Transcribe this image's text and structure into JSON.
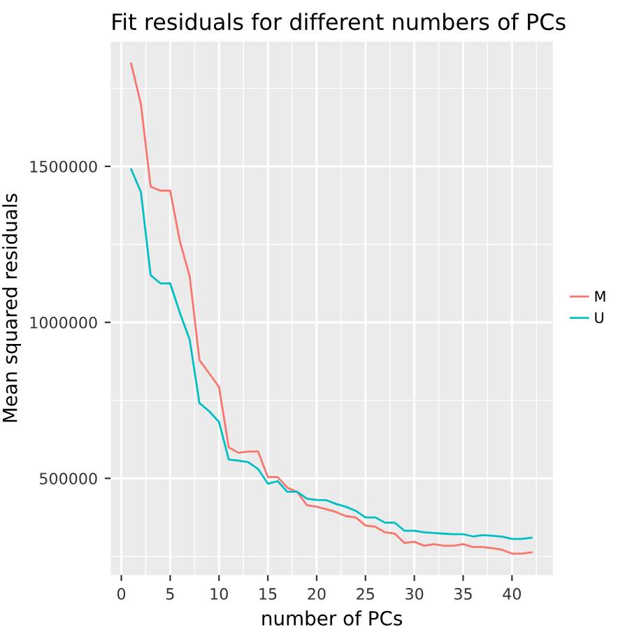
{
  "chart_data": {
    "type": "line",
    "title": "Fit residuals for different numbers of PCs",
    "xlabel": "number of PCs",
    "ylabel": "Mean squared residuals",
    "x": [
      1,
      2,
      3,
      4,
      5,
      6,
      7,
      8,
      9,
      10,
      11,
      12,
      13,
      14,
      15,
      16,
      17,
      18,
      19,
      20,
      21,
      22,
      23,
      24,
      25,
      26,
      27,
      28,
      29,
      30,
      31,
      32,
      33,
      34,
      35,
      36,
      37,
      38,
      39,
      40,
      41,
      42
    ],
    "series": [
      {
        "name": "M",
        "color": "#f8766d",
        "values": [
          1830000,
          1700000,
          1435000,
          1422000,
          1422000,
          1259000,
          1147000,
          879000,
          836000,
          793000,
          599000,
          582000,
          586000,
          586000,
          504000,
          504000,
          470000,
          457000,
          414000,
          409000,
          401000,
          392000,
          379000,
          375000,
          349000,
          345000,
          327000,
          323000,
          293000,
          297000,
          284000,
          289000,
          284000,
          284000,
          289000,
          280000,
          280000,
          276000,
          271000,
          259000,
          259000,
          263000
        ]
      },
      {
        "name": "U",
        "color": "#00bfc4",
        "values": [
          1491000,
          1418000,
          1151000,
          1125000,
          1125000,
          1030000,
          944000,
          741000,
          715000,
          681000,
          560000,
          557000,
          552000,
          530000,
          483000,
          491000,
          457000,
          457000,
          435000,
          431000,
          430000,
          418000,
          409000,
          396000,
          375000,
          375000,
          358000,
          358000,
          332000,
          332000,
          327000,
          325000,
          323000,
          321000,
          321000,
          314000,
          318000,
          316000,
          313000,
          306000,
          306000,
          310000
        ]
      }
    ],
    "xlim": [
      -1.1,
      44.2
    ],
    "ylim": [
      190000,
      1900000
    ],
    "xticks": [
      0,
      5,
      10,
      15,
      20,
      25,
      30,
      35,
      40
    ],
    "yticks": [
      500000,
      1000000,
      1500000
    ],
    "grid": true,
    "legend": "right",
    "marker": "none",
    "line_style": "solid"
  }
}
